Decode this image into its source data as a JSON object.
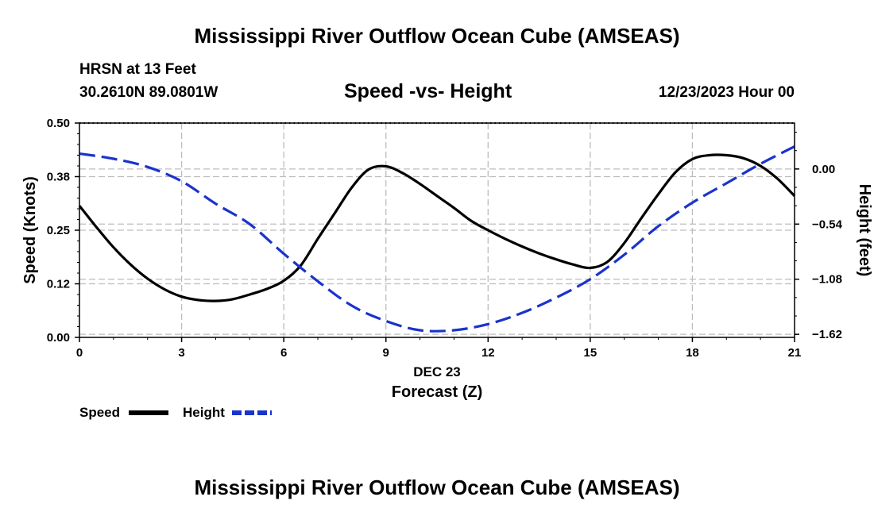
{
  "header": {
    "title": "Mississippi River Outflow Ocean Cube (AMSEAS)",
    "station": "HRSN at 13 Feet",
    "coords": "30.2610N  89.0801W",
    "subtitle": "Speed -vs- Height",
    "date": "12/23/2023 Hour 00"
  },
  "footer": {
    "title": "Mississippi River Outflow Ocean Cube (AMSEAS)"
  },
  "chart_data": {
    "type": "line",
    "title": "Speed -vs- Height",
    "xlabel": "Forecast (Z)",
    "xsublabel": "DEC 23",
    "ylabel": "Speed (Knots)",
    "y2label": "Height (feet)",
    "x_ticks": [
      "0",
      "3",
      "6",
      "9",
      "12",
      "15",
      "18",
      "21"
    ],
    "x_tick_values": [
      0,
      3,
      6,
      9,
      12,
      15,
      18,
      21
    ],
    "xlim": [
      0,
      21
    ],
    "y_ticks": [
      "0.00",
      "0.12",
      "0.25",
      "0.38",
      "0.50"
    ],
    "y_tick_values": [
      0.0,
      0.125,
      0.25,
      0.375,
      0.5
    ],
    "ylim": [
      0,
      0.5
    ],
    "y2_ticks": [
      "0.00",
      "−0.54",
      "−1.08",
      "−1.62"
    ],
    "y2_tick_values": [
      0.0,
      -0.54,
      -1.08,
      -1.62
    ],
    "y2lim": [
      -1.65,
      0.45
    ],
    "grid": true,
    "series": [
      {
        "name": "Speed",
        "axis": "left",
        "color": "#000000",
        "dash": "solid",
        "x": [
          0,
          0.5,
          1,
          1.5,
          2,
          2.5,
          3,
          3.5,
          4,
          4.5,
          5,
          5.5,
          6,
          6.5,
          7,
          7.5,
          8,
          8.5,
          9,
          9.5,
          10,
          10.5,
          11,
          11.5,
          12,
          12.5,
          13,
          13.5,
          14,
          14.5,
          15,
          15.5,
          16,
          16.5,
          17,
          17.5,
          18,
          18.5,
          19,
          19.5,
          20,
          20.5,
          21
        ],
        "values": [
          0.307,
          0.257,
          0.21,
          0.17,
          0.137,
          0.112,
          0.095,
          0.087,
          0.085,
          0.089,
          0.1,
          0.113,
          0.132,
          0.168,
          0.23,
          0.29,
          0.35,
          0.392,
          0.399,
          0.383,
          0.358,
          0.33,
          0.302,
          0.272,
          0.25,
          0.23,
          0.212,
          0.196,
          0.182,
          0.17,
          0.162,
          0.176,
          0.22,
          0.278,
          0.334,
          0.385,
          0.416,
          0.425,
          0.425,
          0.418,
          0.4,
          0.37,
          0.33
        ]
      },
      {
        "name": "Height",
        "axis": "right",
        "color": "#1a33cc",
        "dash": "dashed",
        "x": [
          0,
          1,
          2,
          3,
          4,
          5,
          6,
          7,
          8,
          9,
          10,
          11,
          12,
          13,
          14,
          15,
          16,
          17,
          18,
          19,
          20,
          21
        ],
        "values": [
          0.15,
          0.1,
          0.02,
          -0.12,
          -0.34,
          -0.54,
          -0.83,
          -1.1,
          -1.34,
          -1.49,
          -1.58,
          -1.58,
          -1.52,
          -1.41,
          -1.26,
          -1.08,
          -0.84,
          -0.56,
          -0.33,
          -0.14,
          0.05,
          0.22
        ]
      }
    ],
    "legend": [
      {
        "label": "Speed",
        "color": "#000000",
        "dash": "solid"
      },
      {
        "label": "Height",
        "color": "#1a33cc",
        "dash": "dashed"
      }
    ],
    "legend_position": "bottom-left"
  }
}
